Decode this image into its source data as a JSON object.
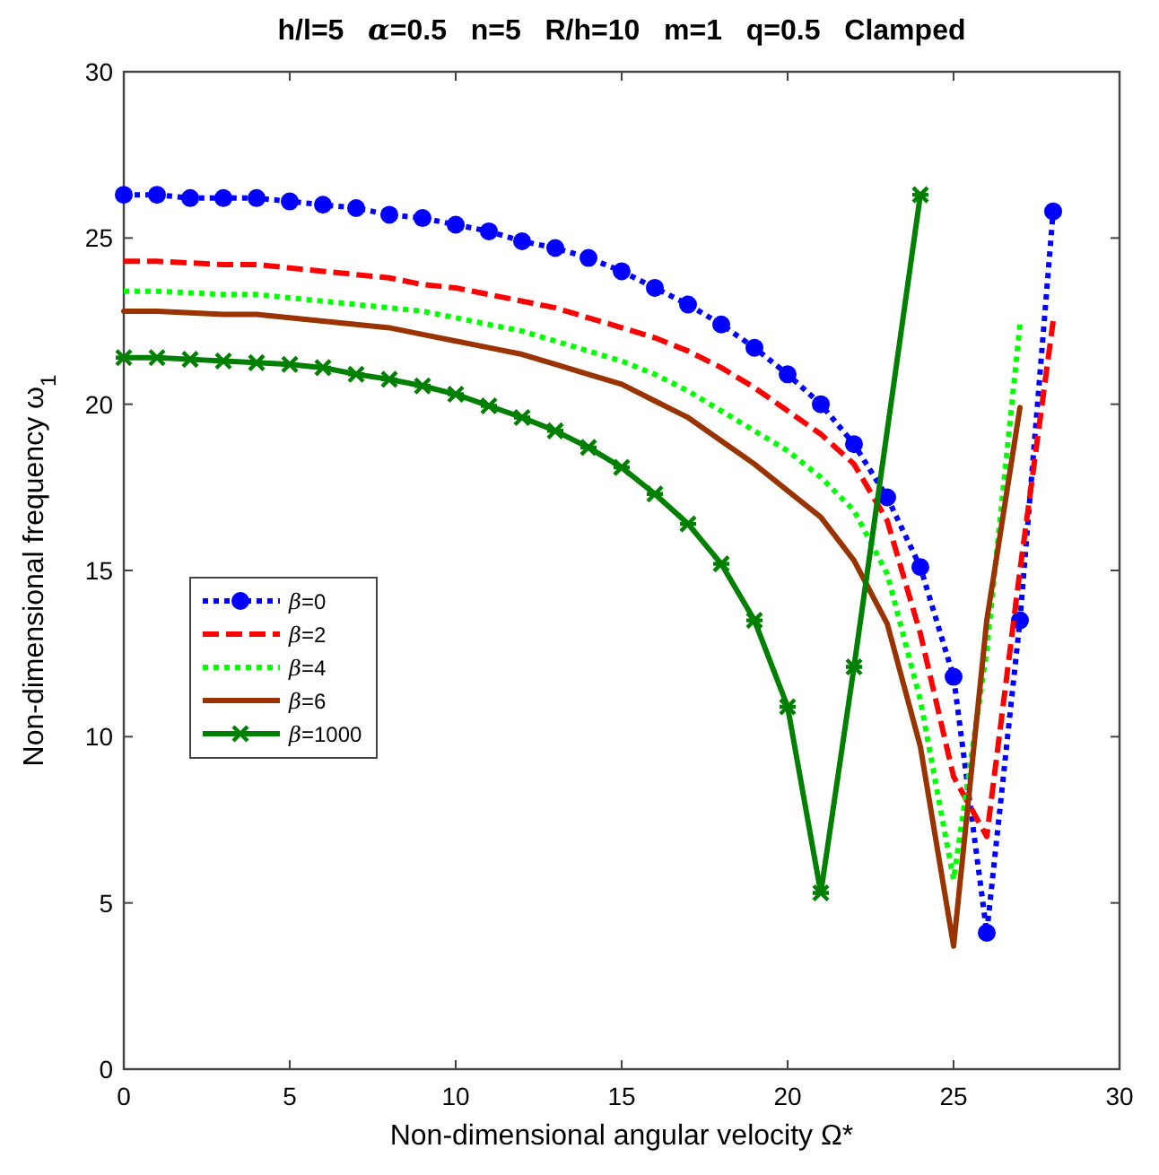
{
  "chart_data": {
    "type": "line",
    "title": "h/l=5   α=0.5   n=5   R/h=10   m=1   q=0.5   Clamped",
    "xlabel": "Non-dimensional angular velocity Ω*",
    "ylabel": "Non-dimensional frequency ω$_{1}$",
    "xlim": [
      0,
      30
    ],
    "ylim": [
      0,
      30
    ],
    "xticks": [
      0,
      5,
      10,
      15,
      20,
      25,
      30
    ],
    "yticks": [
      0,
      5,
      10,
      15,
      20,
      25,
      30
    ],
    "grid": false,
    "legend": "left",
    "series": [
      {
        "name": "β=0",
        "color": "#0000ff",
        "line_style": "dotted",
        "marker": "circle",
        "x": [
          0,
          1,
          2,
          3,
          4,
          5,
          6,
          7,
          8,
          9,
          10,
          11,
          12,
          13,
          14,
          15,
          16,
          17,
          18,
          19,
          20,
          21,
          22,
          23,
          24,
          25,
          26,
          27,
          28
        ],
        "values": [
          26.3,
          26.3,
          26.2,
          26.2,
          26.2,
          26.1,
          26.0,
          25.9,
          25.7,
          25.6,
          25.4,
          25.2,
          24.9,
          24.7,
          24.4,
          24.0,
          23.5,
          23.0,
          22.4,
          21.7,
          20.9,
          20.0,
          18.8,
          17.2,
          15.1,
          11.8,
          4.1,
          13.5,
          25.8
        ]
      },
      {
        "name": "β=2",
        "color": "#ff0000",
        "line_style": "dashed",
        "marker": "none",
        "x": [
          0,
          1,
          2,
          3,
          4,
          5,
          6,
          7,
          8,
          9,
          10,
          11,
          12,
          13,
          14,
          15,
          16,
          17,
          18,
          19,
          20,
          21,
          22,
          23,
          24,
          25,
          26,
          27,
          28
        ],
        "values": [
          24.3,
          24.3,
          24.25,
          24.2,
          24.2,
          24.1,
          24.0,
          23.9,
          23.8,
          23.6,
          23.5,
          23.3,
          23.1,
          22.9,
          22.6,
          22.3,
          22.0,
          21.6,
          21.1,
          20.5,
          19.8,
          19.1,
          18.2,
          16.5,
          13.1,
          8.8,
          7.0,
          15.0,
          22.5
        ]
      },
      {
        "name": "β=4",
        "color": "#00ff00",
        "line_style": "dotted",
        "marker": "none",
        "x": [
          0,
          1,
          2,
          3,
          4,
          5,
          6,
          7,
          8,
          9,
          10,
          11,
          12,
          13,
          14,
          15,
          16,
          17,
          18,
          19,
          20,
          21,
          22,
          23,
          24,
          25,
          26,
          27
        ],
        "values": [
          23.4,
          23.4,
          23.35,
          23.3,
          23.3,
          23.2,
          23.1,
          23.0,
          22.9,
          22.8,
          22.6,
          22.4,
          22.2,
          21.9,
          21.6,
          21.3,
          20.9,
          20.4,
          19.8,
          19.2,
          18.6,
          17.8,
          16.8,
          14.9,
          11.1,
          5.7,
          12.6,
          22.4
        ]
      },
      {
        "name": "β=6",
        "color": "#993300",
        "line_style": "solid",
        "marker": "none",
        "x": [
          0,
          1,
          2,
          3,
          4,
          5,
          6,
          7,
          8,
          9,
          10,
          11,
          12,
          13,
          14,
          15,
          16,
          17,
          18,
          19,
          20,
          21,
          22,
          23,
          24,
          25,
          26,
          27
        ],
        "values": [
          22.8,
          22.8,
          22.75,
          22.7,
          22.7,
          22.6,
          22.5,
          22.4,
          22.3,
          22.1,
          21.9,
          21.7,
          21.5,
          21.2,
          20.9,
          20.6,
          20.1,
          19.6,
          18.9,
          18.2,
          17.4,
          16.6,
          15.3,
          13.4,
          9.7,
          3.7,
          13.5,
          19.9
        ]
      },
      {
        "name": "β=1000",
        "color": "#008000",
        "line_style": "solid",
        "marker": "cross",
        "x": [
          0,
          1,
          2,
          3,
          4,
          5,
          6,
          7,
          8,
          9,
          10,
          11,
          12,
          13,
          14,
          15,
          16,
          17,
          18,
          19,
          20,
          21,
          22,
          24
        ],
        "values": [
          21.4,
          21.4,
          21.35,
          21.3,
          21.25,
          21.2,
          21.1,
          20.9,
          20.75,
          20.55,
          20.3,
          19.95,
          19.6,
          19.2,
          18.7,
          18.1,
          17.3,
          16.4,
          15.2,
          13.5,
          10.9,
          5.3,
          12.1,
          26.3
        ]
      }
    ]
  }
}
